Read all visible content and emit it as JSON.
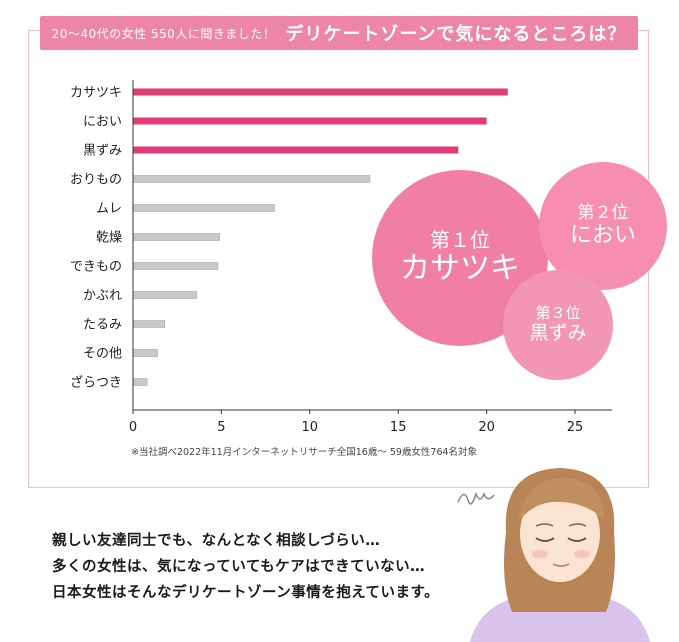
{
  "header": {
    "subtitle": "20～40代の女性 550人に聞きました！",
    "title": "デリケートゾーンで気になるところは？"
  },
  "chart_data": {
    "type": "bar",
    "orientation": "horizontal",
    "categories": [
      "カサツキ",
      "におい",
      "黒ずみ",
      "おりもの",
      "ムレ",
      "乾燥",
      "できもの",
      "かぶれ",
      "たるみ",
      "その他",
      "ざらつき"
    ],
    "values": [
      21.2,
      20.0,
      18.4,
      13.4,
      8.0,
      4.9,
      4.8,
      3.6,
      1.8,
      1.4,
      0.8
    ],
    "xlim": [
      0,
      25
    ],
    "xticks": [
      0,
      5,
      10,
      15,
      20,
      25
    ],
    "tick_labels": [
      "0",
      "5",
      "10",
      "15",
      "20",
      "25"
    ],
    "highlight_top": 3,
    "colors": {
      "highlight": "#e23c78",
      "normal": "#c9c9c9"
    },
    "grid": false
  },
  "note": "※当社調べ2022年11月インターネットリサーチ全国16歳～ 59歳女性764名対象",
  "ranks": [
    {
      "rank": "第１位",
      "item": "カサツキ"
    },
    {
      "rank": "第２位",
      "item": "におい"
    },
    {
      "rank": "第３位",
      "item": "黒ずみ"
    }
  ],
  "bottom_text": [
    "親しい友達同士でも、なんとなく相談しづらい…",
    "多くの女性は、気になっていてもケアはできていない…",
    "日本女性はそんなデリケートゾーン事情を抱えています。"
  ],
  "colors": {
    "accent": "#ec85a8",
    "border": "#f3bfd0"
  }
}
